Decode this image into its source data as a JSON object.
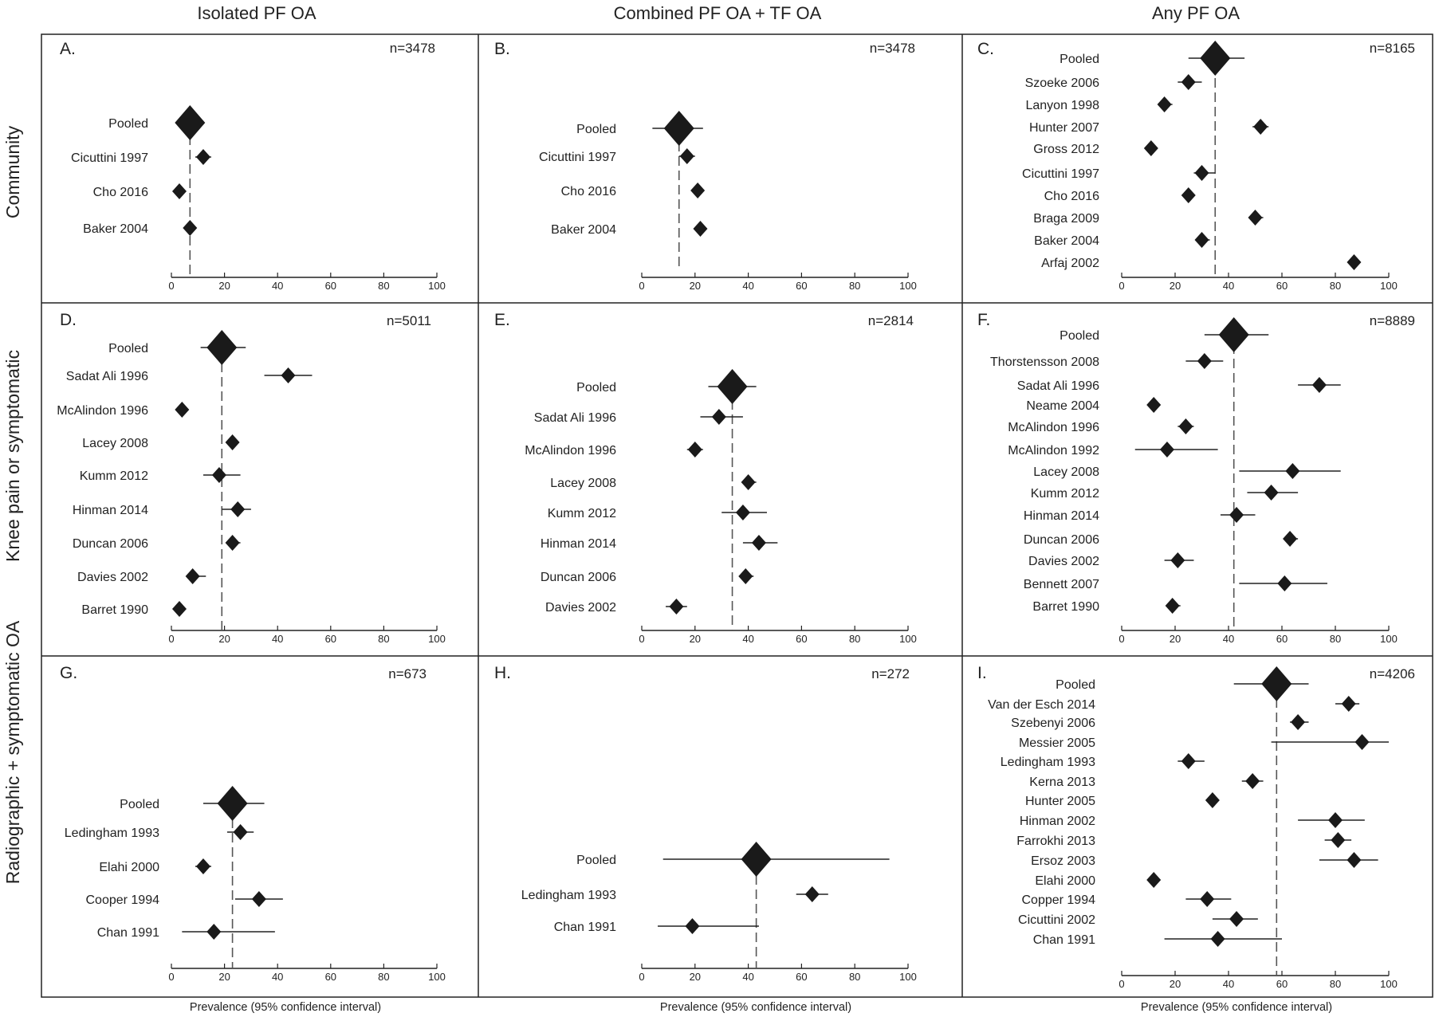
{
  "figure": {
    "col_titles": [
      "Isolated PF OA",
      "Combined PF OA + TF OA",
      "Any PF OA"
    ],
    "row_titles": [
      "Community",
      "Knee pain or symptomatic",
      "Radiographic + symptomatic OA"
    ],
    "x_axis_title": "Prevalence (95% confidence interval)"
  },
  "chart_data": [
    {
      "type": "forest",
      "panel": "A.",
      "n_label": "n=3478",
      "xlim": [
        0,
        100
      ],
      "xticks": [
        0,
        20,
        40,
        60,
        80,
        100
      ],
      "studies": [
        {
          "label": "Pooled",
          "est": 7,
          "lo": 5,
          "hi": 9,
          "pooled": true
        },
        {
          "label": "Cicuttini 1997",
          "est": 12,
          "lo": 9,
          "hi": 15
        },
        {
          "label": "Cho 2016",
          "est": 3,
          "lo": 2,
          "hi": 4
        },
        {
          "label": "Baker 2004",
          "est": 7,
          "lo": 5,
          "hi": 9
        }
      ]
    },
    {
      "type": "forest",
      "panel": "B.",
      "n_label": "n=3478",
      "xlim": [
        0,
        100
      ],
      "xticks": [
        0,
        20,
        40,
        60,
        80,
        100
      ],
      "studies": [
        {
          "label": "Pooled",
          "est": 14,
          "lo": 4,
          "hi": 23,
          "pooled": true
        },
        {
          "label": "Cicuttini 1997",
          "est": 17,
          "lo": 14,
          "hi": 20
        },
        {
          "label": "Cho 2016",
          "est": 21,
          "lo": 19,
          "hi": 23
        },
        {
          "label": "Baker 2004",
          "est": 22,
          "lo": 20,
          "hi": 24
        }
      ]
    },
    {
      "type": "forest",
      "panel": "C.",
      "n_label": "n=8165",
      "xlim": [
        0,
        100
      ],
      "xticks": [
        0,
        20,
        40,
        60,
        80,
        100
      ],
      "studies": [
        {
          "label": "Pooled",
          "est": 35,
          "lo": 25,
          "hi": 46,
          "pooled": true
        },
        {
          "label": "Szoeke 2006",
          "est": 25,
          "lo": 21,
          "hi": 30
        },
        {
          "label": "Lanyon 1998",
          "est": 16,
          "lo": 14,
          "hi": 19
        },
        {
          "label": "Hunter 2007",
          "est": 52,
          "lo": 49,
          "hi": 55
        },
        {
          "label": "Gross 2012",
          "est": 11,
          "lo": 9,
          "hi": 13
        },
        {
          "label": "Cicuttini 1997",
          "est": 30,
          "lo": 27,
          "hi": 35
        },
        {
          "label": "Cho 2016",
          "est": 25,
          "lo": 23,
          "hi": 27
        },
        {
          "label": "Braga 2009",
          "est": 50,
          "lo": 48,
          "hi": 53
        },
        {
          "label": "Baker 2004",
          "est": 30,
          "lo": 28,
          "hi": 33
        },
        {
          "label": "Arfaj 2002",
          "est": 87,
          "lo": 85,
          "hi": 89
        }
      ]
    },
    {
      "type": "forest",
      "panel": "D.",
      "n_label": "n=5011",
      "xlim": [
        0,
        100
      ],
      "xticks": [
        0,
        20,
        40,
        60,
        80,
        100
      ],
      "studies": [
        {
          "label": "Pooled",
          "est": 19,
          "lo": 11,
          "hi": 28,
          "pooled": true
        },
        {
          "label": "Sadat Ali 1996",
          "est": 44,
          "lo": 35,
          "hi": 53
        },
        {
          "label": "McAlindon 1996",
          "est": 4,
          "lo": 3,
          "hi": 6
        },
        {
          "label": "Lacey 2008",
          "est": 23,
          "lo": 21,
          "hi": 25
        },
        {
          "label": "Kumm 2012",
          "est": 18,
          "lo": 12,
          "hi": 26
        },
        {
          "label": "Hinman 2014",
          "est": 25,
          "lo": 19,
          "hi": 30
        },
        {
          "label": "Duncan 2006",
          "est": 23,
          "lo": 21,
          "hi": 26
        },
        {
          "label": "Davies 2002",
          "est": 8,
          "lo": 6,
          "hi": 13
        },
        {
          "label": "Barret 1990",
          "est": 3,
          "lo": 2,
          "hi": 5
        }
      ]
    },
    {
      "type": "forest",
      "panel": "E.",
      "n_label": "n=2814",
      "xlim": [
        0,
        100
      ],
      "xticks": [
        0,
        20,
        40,
        60,
        80,
        100
      ],
      "studies": [
        {
          "label": "Pooled",
          "est": 34,
          "lo": 25,
          "hi": 43,
          "pooled": true
        },
        {
          "label": "Sadat Ali 1996",
          "est": 29,
          "lo": 22,
          "hi": 38
        },
        {
          "label": "McAlindon 1996",
          "est": 20,
          "lo": 17,
          "hi": 23
        },
        {
          "label": "Lacey 2008",
          "est": 40,
          "lo": 38,
          "hi": 43
        },
        {
          "label": "Kumm 2012",
          "est": 38,
          "lo": 30,
          "hi": 47
        },
        {
          "label": "Hinman 2014",
          "est": 44,
          "lo": 38,
          "hi": 51
        },
        {
          "label": "Duncan 2006",
          "est": 39,
          "lo": 37,
          "hi": 42
        },
        {
          "label": "Davies 2002",
          "est": 13,
          "lo": 9,
          "hi": 17
        }
      ]
    },
    {
      "type": "forest",
      "panel": "F.",
      "n_label": "n=8889",
      "xlim": [
        0,
        100
      ],
      "xticks": [
        0,
        20,
        40,
        60,
        80,
        100
      ],
      "studies": [
        {
          "label": "Pooled",
          "est": 42,
          "lo": 31,
          "hi": 55,
          "pooled": true
        },
        {
          "label": "Thorstensson 2008",
          "est": 31,
          "lo": 24,
          "hi": 38
        },
        {
          "label": "Sadat Ali 1996",
          "est": 74,
          "lo": 66,
          "hi": 82
        },
        {
          "label": "Neame 2004",
          "est": 12,
          "lo": 10,
          "hi": 14
        },
        {
          "label": "McAlindon 1996",
          "est": 24,
          "lo": 21,
          "hi": 27
        },
        {
          "label": "McAlindon 1992",
          "est": 17,
          "lo": 5,
          "hi": 36
        },
        {
          "label": "Lacey 2008",
          "est": 64,
          "lo": 44,
          "hi": 82
        },
        {
          "label": "Kumm 2012",
          "est": 56,
          "lo": 47,
          "hi": 66
        },
        {
          "label": "Hinman 2014",
          "est": 43,
          "lo": 37,
          "hi": 50
        },
        {
          "label": "Duncan 2006",
          "est": 63,
          "lo": 61,
          "hi": 66
        },
        {
          "label": "Davies 2002",
          "est": 21,
          "lo": 16,
          "hi": 27
        },
        {
          "label": "Bennett 2007",
          "est": 61,
          "lo": 44,
          "hi": 77
        },
        {
          "label": "Barret 1990",
          "est": 19,
          "lo": 17,
          "hi": 22
        }
      ]
    },
    {
      "type": "forest",
      "panel": "G.",
      "n_label": "n=673",
      "xlim": [
        0,
        100
      ],
      "xticks": [
        0,
        20,
        40,
        60,
        80,
        100
      ],
      "studies": [
        {
          "label": "Pooled",
          "est": 23,
          "lo": 12,
          "hi": 35,
          "pooled": true
        },
        {
          "label": "Ledingham 1993",
          "est": 26,
          "lo": 21,
          "hi": 31
        },
        {
          "label": "Elahi 2000",
          "est": 12,
          "lo": 9,
          "hi": 15
        },
        {
          "label": "Cooper 1994",
          "est": 33,
          "lo": 24,
          "hi": 42
        },
        {
          "label": "Chan 1991",
          "est": 16,
          "lo": 4,
          "hi": 39
        }
      ]
    },
    {
      "type": "forest",
      "panel": "H.",
      "n_label": "n=272",
      "xlim": [
        0,
        100
      ],
      "xticks": [
        0,
        20,
        40,
        60,
        80,
        100
      ],
      "studies": [
        {
          "label": "Pooled",
          "est": 43,
          "lo": 8,
          "hi": 93,
          "pooled": true
        },
        {
          "label": "Ledingham 1993",
          "est": 64,
          "lo": 58,
          "hi": 70
        },
        {
          "label": "Chan 1991",
          "est": 19,
          "lo": 6,
          "hi": 44
        }
      ]
    },
    {
      "type": "forest",
      "panel": "I.",
      "n_label": "n=4206",
      "xlim": [
        0,
        100
      ],
      "xticks": [
        0,
        20,
        40,
        60,
        80,
        100
      ],
      "studies": [
        {
          "label": "Pooled",
          "est": 58,
          "lo": 42,
          "hi": 70,
          "pooled": true
        },
        {
          "label": "Van der Esch 2014",
          "est": 85,
          "lo": 80,
          "hi": 89
        },
        {
          "label": "Szebenyi 2006",
          "est": 66,
          "lo": 63,
          "hi": 70
        },
        {
          "label": "Messier 2005",
          "est": 90,
          "lo": 56,
          "hi": 100
        },
        {
          "label": "Ledingham 1993",
          "est": 25,
          "lo": 21,
          "hi": 31
        },
        {
          "label": "Kerna 2013",
          "est": 49,
          "lo": 45,
          "hi": 53
        },
        {
          "label": "Hunter 2005",
          "est": 34,
          "lo": 32,
          "hi": 36
        },
        {
          "label": "Hinman 2002",
          "est": 80,
          "lo": 66,
          "hi": 91
        },
        {
          "label": "Farrokhi 2013",
          "est": 81,
          "lo": 76,
          "hi": 86
        },
        {
          "label": "Ersoz 2003",
          "est": 87,
          "lo": 74,
          "hi": 96
        },
        {
          "label": "Elahi 2000",
          "est": 12,
          "lo": 10,
          "hi": 14
        },
        {
          "label": "Copper 1994",
          "est": 32,
          "lo": 24,
          "hi": 41
        },
        {
          "label": "Cicuttini 2002",
          "est": 43,
          "lo": 34,
          "hi": 51
        },
        {
          "label": "Chan 1991",
          "est": 36,
          "lo": 16,
          "hi": 60
        }
      ]
    }
  ]
}
